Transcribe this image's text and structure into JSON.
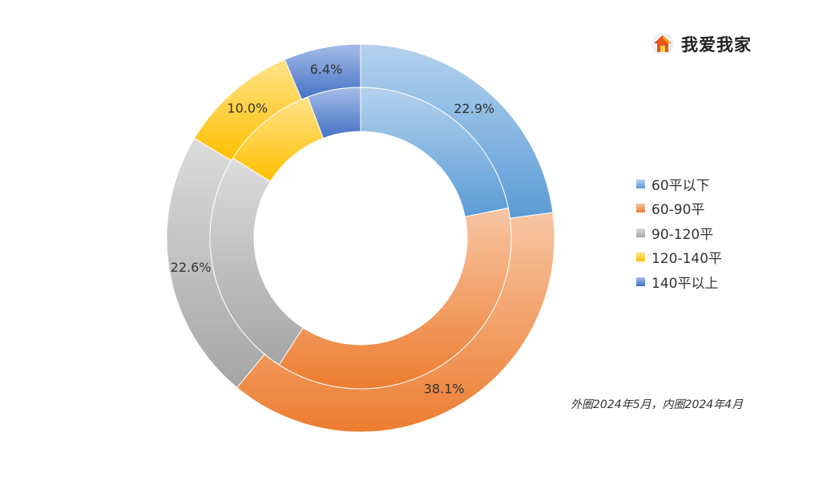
{
  "brand": {
    "name": "我爱我家",
    "icon": "house-logo-icon"
  },
  "note": "外圈2024年5月，内圈2024年4月",
  "colors": {
    "60平以下": [
      "#b4d2ee",
      "#5b9bd5"
    ],
    "60-90平": [
      "#f7c6a3",
      "#ed7d31"
    ],
    "90-120平": [
      "#dcdcdc",
      "#a5a5a5"
    ],
    "120-140平": [
      "#ffe38a",
      "#ffc000"
    ],
    "140平以上": [
      "#a5bce8",
      "#4472c4"
    ]
  },
  "chart_data": {
    "type": "donut",
    "categories": [
      "60平以下",
      "60-90平",
      "90-120平",
      "120-140平",
      "140平以上"
    ],
    "series": [
      {
        "name": "2024年5月",
        "ring": "outer",
        "values": [
          22.9,
          38.1,
          22.6,
          10.0,
          6.4
        ],
        "labels": [
          "22.9%",
          "38.1%",
          "22.6%",
          "10.0%",
          "6.4%"
        ]
      },
      {
        "name": "2024年4月",
        "ring": "inner",
        "values": [
          21.8,
          37.3,
          24.8,
          10.4,
          5.7
        ],
        "labels": []
      }
    ],
    "legend_position": "right"
  }
}
